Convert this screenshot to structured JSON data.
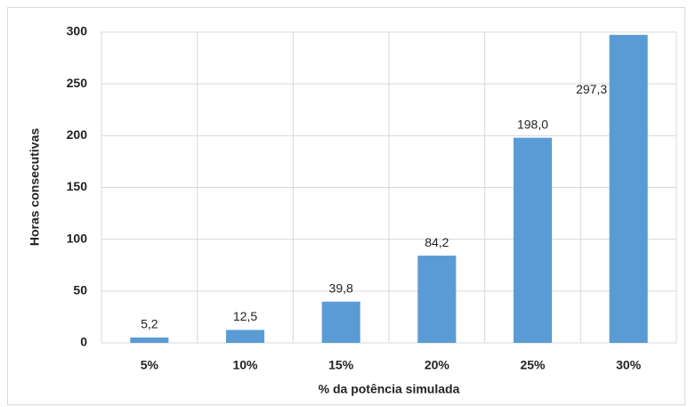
{
  "chart_data": {
    "type": "bar",
    "xlabel": "% da potência simulada",
    "ylabel": "Horas consecutivas",
    "categories": [
      "5%",
      "10%",
      "15%",
      "20%",
      "25%",
      "30%"
    ],
    "values": [
      5.2,
      12.5,
      39.8,
      84.2,
      198.0,
      297.3
    ],
    "value_labels": [
      "5,2",
      "12,5",
      "39,8",
      "84,2",
      "198,0",
      "297,3"
    ],
    "color": "#5b9bd5",
    "ylim": [
      0,
      300
    ],
    "yticks": [
      0,
      50,
      100,
      150,
      200,
      250,
      300
    ],
    "grid": true
  }
}
